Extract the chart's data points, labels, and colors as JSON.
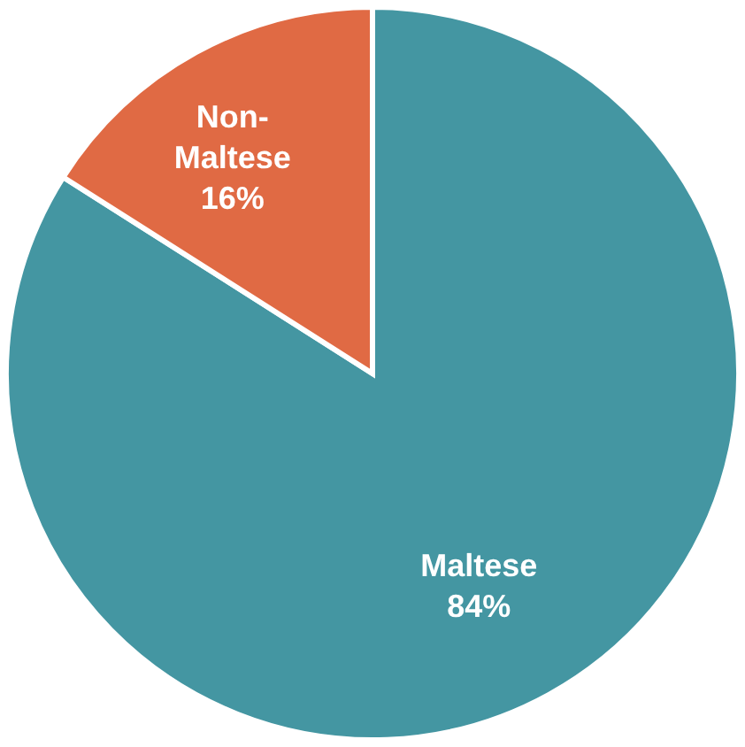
{
  "chart_data": {
    "type": "pie",
    "categories": [
      "Maltese",
      "Non-Maltese"
    ],
    "values": [
      84,
      16
    ],
    "colors": [
      "#4496a2",
      "#e06a44"
    ],
    "value_labels": [
      "84%",
      "16%"
    ]
  }
}
